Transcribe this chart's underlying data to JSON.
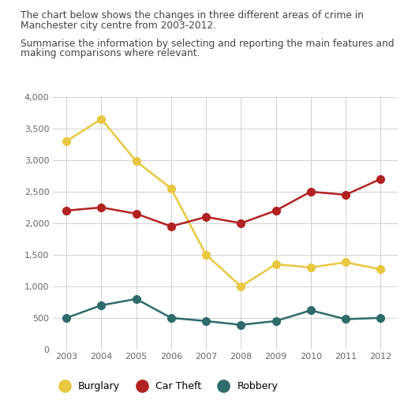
{
  "years": [
    2003,
    2004,
    2005,
    2006,
    2007,
    2008,
    2009,
    2010,
    2011,
    2012
  ],
  "burglary": [
    3300,
    3650,
    2980,
    2550,
    1500,
    1000,
    1350,
    1300,
    1380,
    1270
  ],
  "car_theft": [
    2200,
    2250,
    2150,
    1950,
    2100,
    2000,
    2200,
    2500,
    2450,
    2700
  ],
  "robbery": [
    500,
    700,
    800,
    500,
    450,
    390,
    450,
    620,
    480,
    500
  ],
  "burglary_color": "#E8C840",
  "car_theft_color": "#B22222",
  "robbery_color": "#2E6B6B",
  "title_line1": "The chart below shows the changes in three different areas of crime in",
  "title_line2": "Manchester city centre from 2003-2012.",
  "subtitle_line1": "Summarise the information by selecting and reporting the main features and",
  "subtitle_line2": "making comparisons where relevant.",
  "ylim": [
    0,
    4000
  ],
  "yticks": [
    0,
    500,
    1000,
    1500,
    2000,
    2500,
    3000,
    3500,
    4000
  ],
  "legend_labels": [
    "Burglary",
    "Car Theft",
    "Robbery"
  ],
  "background_color": "#ffffff",
  "grid_color": "#d0d0d0",
  "marker_size": 7,
  "line_width": 1.8,
  "text_color": "#444444"
}
